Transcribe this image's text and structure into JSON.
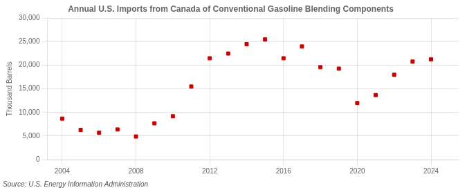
{
  "chart_data": {
    "type": "scatter",
    "title": "Annual U.S. Imports from Canada of Conventional Gasoline Blending Components",
    "ylabel": "Thousand Barrels",
    "annotations": [
      "Source: U.S. Energy Information Administration"
    ],
    "x": [
      2004,
      2005,
      2006,
      2007,
      2008,
      2009,
      2010,
      2011,
      2012,
      2013,
      2014,
      2015,
      2016,
      2017,
      2018,
      2019,
      2020,
      2021,
      2022,
      2023,
      2024
    ],
    "values": [
      8700,
      6300,
      5700,
      6400,
      4900,
      7700,
      9200,
      15500,
      21500,
      22500,
      24500,
      25500,
      21500,
      24000,
      19600,
      19300,
      12000,
      13700,
      18000,
      20800,
      21300
    ],
    "color": "#cc0000",
    "marker": "square",
    "xlim": [
      2003.2,
      2025.5
    ],
    "xticks": [
      2004,
      2008,
      2012,
      2016,
      2020,
      2024
    ],
    "ylim": [
      0,
      30000
    ],
    "yticks": [
      0,
      {
        "value": 5000,
        "label": "5,000"
      },
      {
        "value": 10000,
        "label": "10,000"
      },
      {
        "value": 15000,
        "label": "15,000"
      },
      {
        "value": 20000,
        "label": "20,000"
      },
      {
        "value": 25000,
        "label": "25,000"
      },
      {
        "value": 30000,
        "label": "30,000"
      }
    ],
    "grid": true
  }
}
